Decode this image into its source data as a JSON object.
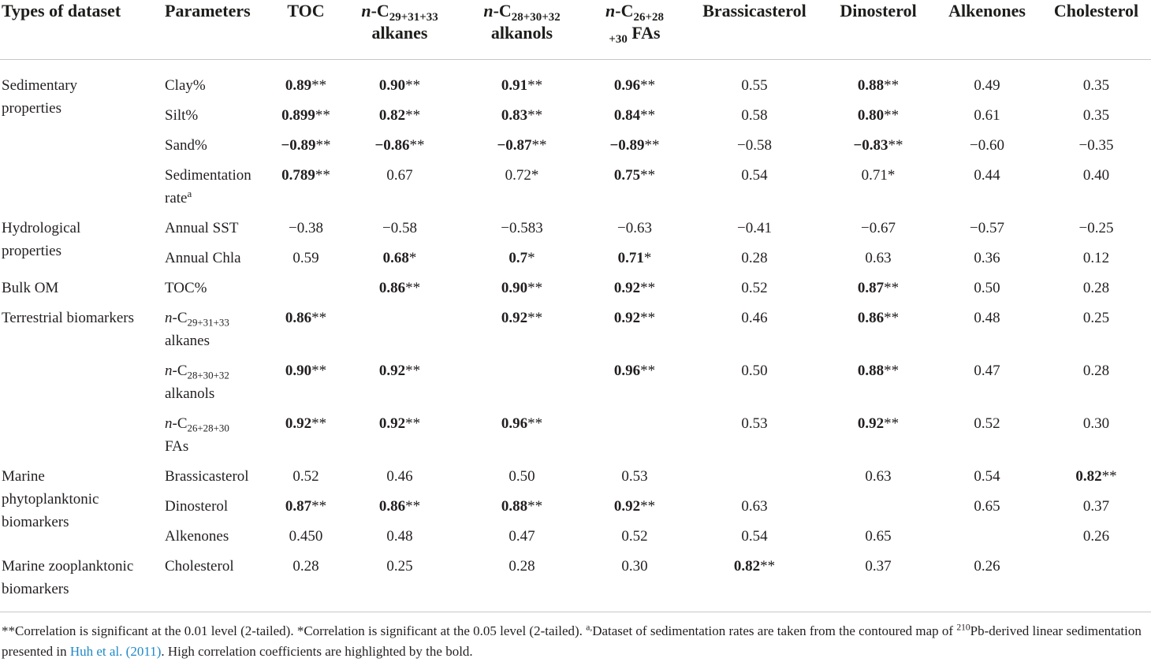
{
  "table": {
    "columns": [
      "Types of dataset",
      "Parameters",
      "TOC",
      [
        {
          "text": "n",
          "style": "italic"
        },
        {
          "text": "-C"
        },
        {
          "text": "29+31+33",
          "style": "sub"
        },
        {
          "text": " alkanes"
        }
      ],
      [
        {
          "text": "n",
          "style": "italic"
        },
        {
          "text": "-C"
        },
        {
          "text": "28+30+32",
          "style": "sub"
        },
        {
          "text": " alkanols"
        }
      ],
      [
        {
          "text": "n",
          "style": "italic"
        },
        {
          "text": "-C"
        },
        {
          "text": "26+28",
          "style": "sub"
        },
        {
          "text": "+30",
          "style": "sub"
        },
        {
          "text": " FAs"
        }
      ],
      "Brassicasterol",
      "Dinosterol",
      "Alkenones",
      "Cholesterol"
    ],
    "groups": [
      {
        "label": [
          "Sedimentary",
          "properties"
        ],
        "rows": [
          {
            "parameter": "Clay%",
            "cells": [
              {
                "value": "0.89",
                "mark": "**",
                "bold": true
              },
              {
                "value": "0.90",
                "mark": "**",
                "bold": true
              },
              {
                "value": "0.91",
                "mark": "**",
                "bold": true
              },
              {
                "value": "0.96",
                "mark": "**",
                "bold": true
              },
              {
                "value": "0.55"
              },
              {
                "value": "0.88",
                "mark": "**",
                "bold": true
              },
              {
                "value": "0.49"
              },
              {
                "value": "0.35"
              }
            ]
          },
          {
            "parameter": "Silt%",
            "cells": [
              {
                "value": "0.899",
                "mark": "**",
                "bold": true
              },
              {
                "value": "0.82",
                "mark": "**",
                "bold": true
              },
              {
                "value": "0.83",
                "mark": "**",
                "bold": true
              },
              {
                "value": "0.84",
                "mark": "**",
                "bold": true
              },
              {
                "value": "0.58"
              },
              {
                "value": "0.80",
                "mark": "**",
                "bold": true
              },
              {
                "value": "0.61"
              },
              {
                "value": "0.35"
              }
            ]
          },
          {
            "parameter": "Sand%",
            "cells": [
              {
                "value": "−0.89",
                "mark": "**",
                "bold": true
              },
              {
                "value": "−0.86",
                "mark": "**",
                "bold": true
              },
              {
                "value": "−0.87",
                "mark": "**",
                "bold": true
              },
              {
                "value": "−0.89",
                "mark": "**",
                "bold": true
              },
              {
                "value": "−0.58"
              },
              {
                "value": "−0.83",
                "mark": "**",
                "bold": true
              },
              {
                "value": "−0.60"
              },
              {
                "value": "−0.35"
              }
            ]
          },
          {
            "parameter": [
              {
                "text": "Sedimentation rate"
              },
              {
                "text": "a",
                "style": "sup"
              }
            ],
            "cells": [
              {
                "value": "0.789",
                "mark": "**",
                "bold": true
              },
              {
                "value": "0.67"
              },
              {
                "value": "0.72",
                "mark": "*"
              },
              {
                "value": "0.75",
                "mark": "**",
                "bold": true
              },
              {
                "value": "0.54"
              },
              {
                "value": "0.71",
                "mark": "*"
              },
              {
                "value": "0.44"
              },
              {
                "value": "0.40"
              }
            ]
          }
        ]
      },
      {
        "label": [
          "Hydrological",
          "properties"
        ],
        "rows": [
          {
            "parameter": "Annual SST",
            "cells": [
              {
                "value": "−0.38"
              },
              {
                "value": "−0.58"
              },
              {
                "value": "−0.583"
              },
              {
                "value": "−0.63"
              },
              {
                "value": "−0.41"
              },
              {
                "value": "−0.67"
              },
              {
                "value": "−0.57"
              },
              {
                "value": "−0.25"
              }
            ]
          },
          {
            "parameter": "Annual Chla",
            "cells": [
              {
                "value": "0.59"
              },
              {
                "value": "0.68",
                "mark": "*",
                "bold": true
              },
              {
                "value": "0.7",
                "mark": "*",
                "bold": true
              },
              {
                "value": "0.71",
                "mark": "*",
                "bold": true
              },
              {
                "value": "0.28"
              },
              {
                "value": "0.63"
              },
              {
                "value": "0.36"
              },
              {
                "value": "0.12"
              }
            ]
          }
        ]
      },
      {
        "label": [
          "Bulk OM"
        ],
        "rows": [
          {
            "parameter": "TOC%",
            "cells": [
              null,
              {
                "value": "0.86",
                "mark": "**",
                "bold": true
              },
              {
                "value": "0.90",
                "mark": "**",
                "bold": true
              },
              {
                "value": "0.92",
                "mark": "**",
                "bold": true
              },
              {
                "value": "0.52"
              },
              {
                "value": "0.87",
                "mark": "**",
                "bold": true
              },
              {
                "value": "0.50"
              },
              {
                "value": "0.28"
              }
            ]
          }
        ]
      },
      {
        "label": [
          "Terrestrial biomarkers"
        ],
        "rows": [
          {
            "parameter": [
              {
                "text": "n",
                "style": "italic"
              },
              {
                "text": "-C"
              },
              {
                "text": "29+31+33",
                "style": "sub"
              },
              {
                "text": " alkanes"
              }
            ],
            "cells": [
              {
                "value": "0.86",
                "mark": "**",
                "bold": true
              },
              null,
              {
                "value": "0.92",
                "mark": "**",
                "bold": true
              },
              {
                "value": "0.92",
                "mark": "**",
                "bold": true
              },
              {
                "value": "0.46"
              },
              {
                "value": "0.86",
                "mark": "**",
                "bold": true
              },
              {
                "value": "0.48"
              },
              {
                "value": "0.25"
              }
            ]
          },
          {
            "parameter": [
              {
                "text": "n",
                "style": "italic"
              },
              {
                "text": "-C"
              },
              {
                "text": "28+30+32",
                "style": "sub"
              },
              {
                "text": " alkanols"
              }
            ],
            "cells": [
              {
                "value": "0.90",
                "mark": "**",
                "bold": true
              },
              {
                "value": "0.92",
                "mark": "**",
                "bold": true
              },
              null,
              {
                "value": "0.96",
                "mark": "**",
                "bold": true
              },
              {
                "value": "0.50"
              },
              {
                "value": "0.88",
                "mark": "**",
                "bold": true
              },
              {
                "value": "0.47"
              },
              {
                "value": "0.28"
              }
            ]
          },
          {
            "parameter": [
              {
                "text": "n",
                "style": "italic"
              },
              {
                "text": "-C"
              },
              {
                "text": "26+28+30",
                "style": "sub"
              },
              {
                "text": " FAs"
              }
            ],
            "cells": [
              {
                "value": "0.92",
                "mark": "**",
                "bold": true
              },
              {
                "value": "0.92",
                "mark": "**",
                "bold": true
              },
              {
                "value": "0.96",
                "mark": "**",
                "bold": true
              },
              null,
              {
                "value": "0.53"
              },
              {
                "value": "0.92",
                "mark": "**",
                "bold": true
              },
              {
                "value": "0.52"
              },
              {
                "value": "0.30"
              }
            ]
          }
        ]
      },
      {
        "label": [
          "Marine",
          "phytoplanktonic",
          "biomarkers"
        ],
        "rows": [
          {
            "parameter": "Brassicasterol",
            "cells": [
              {
                "value": "0.52"
              },
              {
                "value": "0.46"
              },
              {
                "value": "0.50"
              },
              {
                "value": "0.53"
              },
              null,
              {
                "value": "0.63"
              },
              {
                "value": "0.54"
              },
              {
                "value": "0.82",
                "mark": "**",
                "bold": true
              }
            ]
          },
          {
            "parameter": "Dinosterol",
            "cells": [
              {
                "value": "0.87",
                "mark": "**",
                "bold": true
              },
              {
                "value": "0.86",
                "mark": "**",
                "bold": true
              },
              {
                "value": "0.88",
                "mark": "**",
                "bold": true
              },
              {
                "value": "0.92",
                "mark": "**",
                "bold": true
              },
              {
                "value": "0.63"
              },
              null,
              {
                "value": "0.65"
              },
              {
                "value": "0.37"
              }
            ]
          },
          {
            "parameter": "Alkenones",
            "cells": [
              {
                "value": "0.450"
              },
              {
                "value": "0.48"
              },
              {
                "value": "0.47"
              },
              {
                "value": "0.52"
              },
              {
                "value": "0.54"
              },
              {
                "value": "0.65"
              },
              null,
              {
                "value": "0.26"
              }
            ]
          }
        ]
      },
      {
        "label": [
          "Marine zooplanktonic",
          "biomarkers"
        ],
        "rows": [
          {
            "parameter": "Cholesterol",
            "cells": [
              {
                "value": "0.28"
              },
              {
                "value": "0.25"
              },
              {
                "value": "0.28"
              },
              {
                "value": "0.30"
              },
              {
                "value": "0.82",
                "mark": "**",
                "bold": true
              },
              {
                "value": "0.37"
              },
              {
                "value": "0.26"
              },
              null
            ]
          }
        ]
      }
    ],
    "footnote": [
      {
        "text": "**Correlation is significant at the 0.01 level (2-tailed). *Correlation is significant at the 0.05 level (2-tailed). "
      },
      {
        "text": "a,",
        "style": "sup"
      },
      {
        "text": "Dataset of sedimentation rates are taken from the contoured map of "
      },
      {
        "text": "210",
        "style": "sup"
      },
      {
        "text": "Pb-derived linear sedimentation presented in "
      },
      {
        "text": "Huh et al. (2011)",
        "style": "link"
      },
      {
        "text": ". High correlation coefficients are highlighted by the bold."
      }
    ]
  }
}
